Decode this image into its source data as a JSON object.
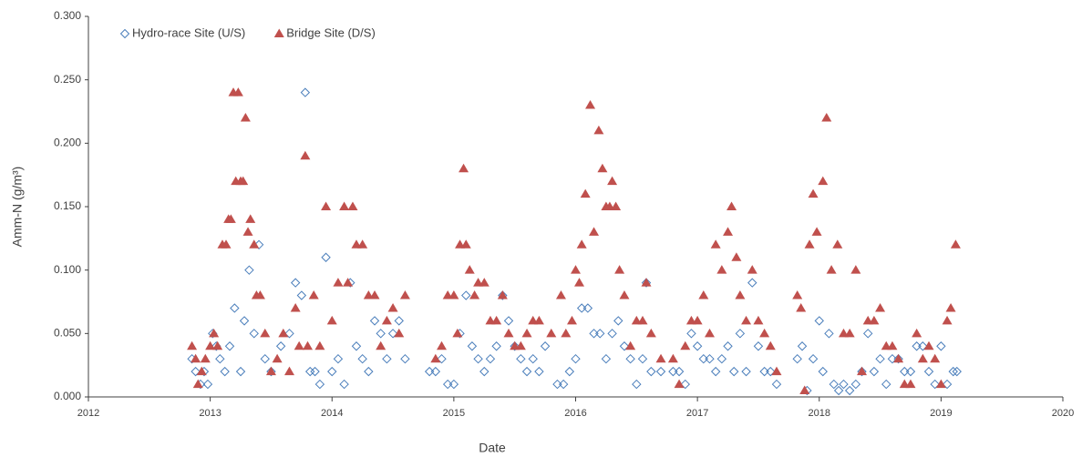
{
  "chart_data": {
    "type": "scatter",
    "x_label": "Date",
    "y_label": "Amm-N (g/m³)",
    "xlim": [
      2012,
      2020
    ],
    "xticks": [
      2012,
      2013,
      2014,
      2015,
      2016,
      2017,
      2018,
      2019,
      2020
    ],
    "ylim": [
      0,
      0.3
    ],
    "yticks": [
      {
        "value": 0,
        "label": "0.000"
      },
      {
        "value": 0.05,
        "label": "0.050"
      },
      {
        "value": 0.1,
        "label": "0.100"
      },
      {
        "value": 0.15,
        "label": "0.150"
      },
      {
        "value": 0.2,
        "label": "0.200"
      },
      {
        "value": 0.25,
        "label": "0.250"
      },
      {
        "value": 0.3,
        "label": "0.300"
      }
    ],
    "grid": false,
    "legend": "upper left",
    "series": [
      {
        "name": "Hydro-race Site (U/S)",
        "color": "#4a7ebb",
        "marker": "diamond",
        "x": [
          2012.85,
          2012.88,
          2012.92,
          2012.95,
          2012.98,
          2013.02,
          2013.05,
          2013.08,
          2013.12,
          2013.16,
          2013.2,
          2013.25,
          2013.28,
          2013.32,
          2013.36,
          2013.4,
          2013.45,
          2013.5,
          2013.58,
          2013.65,
          2013.7,
          2013.75,
          2013.78,
          2013.82,
          2013.86,
          2013.9,
          2013.95,
          2014.0,
          2014.05,
          2014.1,
          2014.15,
          2014.2,
          2014.25,
          2014.3,
          2014.35,
          2014.4,
          2014.45,
          2014.5,
          2014.55,
          2014.6,
          2014.8,
          2014.85,
          2014.9,
          2014.95,
          2015.0,
          2015.05,
          2015.1,
          2015.15,
          2015.2,
          2015.25,
          2015.3,
          2015.35,
          2015.4,
          2015.45,
          2015.5,
          2015.55,
          2015.6,
          2015.65,
          2015.7,
          2015.75,
          2015.85,
          2015.9,
          2015.95,
          2016.0,
          2016.05,
          2016.1,
          2016.15,
          2016.2,
          2016.25,
          2016.3,
          2016.35,
          2016.4,
          2016.45,
          2016.5,
          2016.55,
          2016.58,
          2016.62,
          2016.7,
          2016.8,
          2016.85,
          2016.9,
          2016.95,
          2017.0,
          2017.05,
          2017.1,
          2017.15,
          2017.2,
          2017.25,
          2017.3,
          2017.35,
          2017.4,
          2017.45,
          2017.5,
          2017.55,
          2017.6,
          2017.65,
          2017.82,
          2017.86,
          2017.9,
          2017.95,
          2018.0,
          2018.03,
          2018.08,
          2018.12,
          2018.16,
          2018.2,
          2018.25,
          2018.3,
          2018.35,
          2018.4,
          2018.45,
          2018.5,
          2018.55,
          2018.6,
          2018.65,
          2018.7,
          2018.75,
          2018.8,
          2018.85,
          2018.9,
          2018.95,
          2019.0,
          2019.05,
          2019.1,
          2019.13
        ],
        "values": [
          0.03,
          0.02,
          0.01,
          0.02,
          0.01,
          0.05,
          0.04,
          0.03,
          0.02,
          0.04,
          0.07,
          0.02,
          0.06,
          0.1,
          0.05,
          0.12,
          0.03,
          0.02,
          0.04,
          0.05,
          0.09,
          0.08,
          0.24,
          0.02,
          0.02,
          0.01,
          0.11,
          0.02,
          0.03,
          0.01,
          0.09,
          0.04,
          0.03,
          0.02,
          0.06,
          0.05,
          0.03,
          0.05,
          0.06,
          0.03,
          0.02,
          0.02,
          0.03,
          0.01,
          0.01,
          0.05,
          0.08,
          0.04,
          0.03,
          0.02,
          0.03,
          0.04,
          0.08,
          0.06,
          0.04,
          0.03,
          0.02,
          0.03,
          0.02,
          0.04,
          0.01,
          0.01,
          0.02,
          0.03,
          0.07,
          0.07,
          0.05,
          0.05,
          0.03,
          0.05,
          0.06,
          0.04,
          0.03,
          0.01,
          0.03,
          0.09,
          0.02,
          0.02,
          0.02,
          0.02,
          0.01,
          0.05,
          0.04,
          0.03,
          0.03,
          0.02,
          0.03,
          0.04,
          0.02,
          0.05,
          0.02,
          0.09,
          0.04,
          0.02,
          0.02,
          0.01,
          0.03,
          0.04,
          0.005,
          0.03,
          0.06,
          0.02,
          0.05,
          0.01,
          0.005,
          0.01,
          0.005,
          0.01,
          0.02,
          0.05,
          0.02,
          0.03,
          0.01,
          0.03,
          0.03,
          0.02,
          0.02,
          0.04,
          0.04,
          0.02,
          0.01,
          0.04,
          0.01,
          0.02,
          0.02
        ]
      },
      {
        "name": "Bridge Site (D/S)",
        "color": "#c0504d",
        "marker": "triangle",
        "x": [
          2012.85,
          2012.88,
          2012.9,
          2012.93,
          2012.96,
          2013.0,
          2013.03,
          2013.06,
          2013.1,
          2013.13,
          2013.15,
          2013.17,
          2013.19,
          2013.21,
          2013.23,
          2013.25,
          2013.27,
          2013.29,
          2013.31,
          2013.33,
          2013.36,
          2013.38,
          2013.41,
          2013.45,
          2013.5,
          2013.55,
          2013.6,
          2013.65,
          2013.7,
          2013.73,
          2013.78,
          2013.8,
          2013.85,
          2013.9,
          2013.95,
          2014.0,
          2014.05,
          2014.1,
          2014.13,
          2014.17,
          2014.2,
          2014.25,
          2014.3,
          2014.35,
          2014.4,
          2014.45,
          2014.5,
          2014.55,
          2014.6,
          2014.85,
          2014.9,
          2014.95,
          2015.0,
          2015.03,
          2015.05,
          2015.08,
          2015.1,
          2015.13,
          2015.17,
          2015.2,
          2015.25,
          2015.3,
          2015.35,
          2015.4,
          2015.45,
          2015.5,
          2015.55,
          2015.6,
          2015.65,
          2015.7,
          2015.8,
          2015.88,
          2015.92,
          2015.97,
          2016.0,
          2016.03,
          2016.05,
          2016.08,
          2016.12,
          2016.15,
          2016.19,
          2016.22,
          2016.25,
          2016.28,
          2016.3,
          2016.33,
          2016.36,
          2016.4,
          2016.45,
          2016.5,
          2016.55,
          2016.58,
          2016.62,
          2016.7,
          2016.8,
          2016.85,
          2016.9,
          2016.95,
          2017.0,
          2017.05,
          2017.1,
          2017.15,
          2017.2,
          2017.25,
          2017.28,
          2017.32,
          2017.35,
          2017.4,
          2017.45,
          2017.5,
          2017.55,
          2017.6,
          2017.65,
          2017.82,
          2017.85,
          2017.88,
          2017.92,
          2017.95,
          2017.98,
          2018.03,
          2018.06,
          2018.1,
          2018.15,
          2018.2,
          2018.25,
          2018.3,
          2018.35,
          2018.4,
          2018.45,
          2018.5,
          2018.55,
          2018.6,
          2018.65,
          2018.7,
          2018.75,
          2018.8,
          2018.85,
          2018.9,
          2018.95,
          2019.0,
          2019.05,
          2019.08,
          2019.12
        ],
        "values": [
          0.04,
          0.03,
          0.01,
          0.02,
          0.03,
          0.04,
          0.05,
          0.04,
          0.12,
          0.12,
          0.14,
          0.14,
          0.24,
          0.17,
          0.24,
          0.17,
          0.17,
          0.22,
          0.13,
          0.14,
          0.12,
          0.08,
          0.08,
          0.05,
          0.02,
          0.03,
          0.05,
          0.02,
          0.07,
          0.04,
          0.19,
          0.04,
          0.08,
          0.04,
          0.15,
          0.06,
          0.09,
          0.15,
          0.09,
          0.15,
          0.12,
          0.12,
          0.08,
          0.08,
          0.04,
          0.06,
          0.07,
          0.05,
          0.08,
          0.03,
          0.04,
          0.08,
          0.08,
          0.05,
          0.12,
          0.18,
          0.12,
          0.1,
          0.08,
          0.09,
          0.09,
          0.06,
          0.06,
          0.08,
          0.05,
          0.04,
          0.04,
          0.05,
          0.06,
          0.06,
          0.05,
          0.08,
          0.05,
          0.06,
          0.1,
          0.09,
          0.12,
          0.16,
          0.23,
          0.13,
          0.21,
          0.18,
          0.15,
          0.15,
          0.17,
          0.15,
          0.1,
          0.08,
          0.04,
          0.06,
          0.06,
          0.09,
          0.05,
          0.03,
          0.03,
          0.01,
          0.04,
          0.06,
          0.06,
          0.08,
          0.05,
          0.12,
          0.1,
          0.13,
          0.15,
          0.11,
          0.08,
          0.06,
          0.1,
          0.06,
          0.05,
          0.04,
          0.02,
          0.08,
          0.07,
          0.005,
          0.12,
          0.16,
          0.13,
          0.17,
          0.22,
          0.1,
          0.12,
          0.05,
          0.05,
          0.1,
          0.02,
          0.06,
          0.06,
          0.07,
          0.04,
          0.04,
          0.03,
          0.01,
          0.01,
          0.05,
          0.03,
          0.04,
          0.03,
          0.01,
          0.06,
          0.07,
          0.12
        ]
      }
    ]
  }
}
